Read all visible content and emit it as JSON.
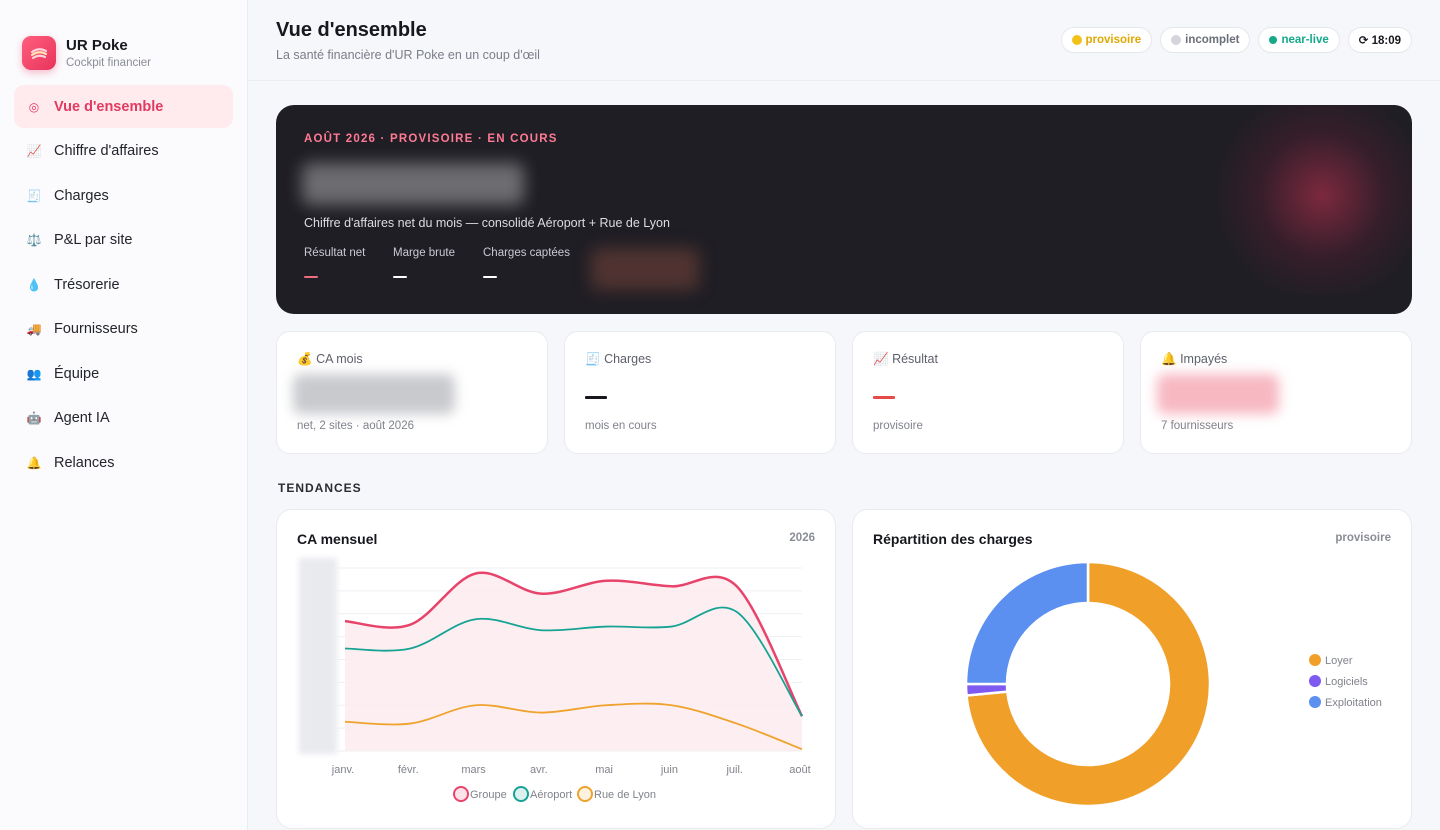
{
  "brand": {
    "name": "UR Poke",
    "subtitle": "Cockpit financier"
  },
  "nav": [
    {
      "icon": "◎",
      "label": "Vue d'ensemble",
      "active": true
    },
    {
      "icon": "📈",
      "label": "Chiffre d'affaires"
    },
    {
      "icon": "🧾",
      "label": "Charges"
    },
    {
      "icon": "⚖️",
      "label": "P&L par site"
    },
    {
      "icon": "💧",
      "label": "Trésorerie"
    },
    {
      "icon": "🚚",
      "label": "Fournisseurs"
    },
    {
      "icon": "👥",
      "label": "Équipe"
    },
    {
      "icon": "🤖",
      "label": "Agent IA"
    },
    {
      "icon": "🔔",
      "label": "Relances"
    }
  ],
  "header": {
    "title": "Vue d'ensemble",
    "subtitle": "La santé financière d'UR Poke en un coup d'œil",
    "badges": [
      {
        "label": "provisoire",
        "color": "#e0a800",
        "dot": "#f2c21b"
      },
      {
        "label": "incomplet",
        "color": "#6b6e78",
        "dot": "#d4d5da"
      },
      {
        "label": "near-live",
        "color": "#13a98a",
        "dot": "#13a98a"
      },
      {
        "label": "⟳ 18:09",
        "color": "#17181d",
        "dot": ""
      }
    ]
  },
  "hero": {
    "eyebrow": "AOÛT 2026 · PROVISOIRE · EN COURS",
    "description": "Chiffre d'affaires net du mois — consolidé Aéroport + Rue de Lyon",
    "stats": [
      {
        "label": "Résultat net",
        "dash_color": "#ef6b7e"
      },
      {
        "label": "Marge brute",
        "dash_color": "#ffffff"
      },
      {
        "label": "Charges captées",
        "dash_color": "#ffffff"
      }
    ]
  },
  "kpis": [
    {
      "icon": "💰",
      "label": "CA mois",
      "note": "net, 2 sites · août 2026",
      "value_type": "blur"
    },
    {
      "icon": "🧾",
      "label": "Charges",
      "note": "mois en cours",
      "value_type": "dash",
      "dash_color": "#17181d"
    },
    {
      "icon": "📈",
      "label": "Résultat",
      "note": "provisoire",
      "value_type": "dash",
      "dash_color": "#e84a4a"
    },
    {
      "icon": "🔔",
      "label": "Impayés",
      "note": "7 fournisseurs",
      "value_type": "blur-red"
    }
  ],
  "section": {
    "title": "TENDANCES"
  },
  "charts": {
    "line": {
      "title": "CA mensuel",
      "tag": "2026"
    },
    "donut": {
      "title": "Répartition des charges",
      "tag": "provisoire"
    }
  },
  "chart_data": [
    {
      "type": "line",
      "categories": [
        "janv.",
        "févr.",
        "mars",
        "avr.",
        "mai",
        "juin",
        "juil.",
        "août"
      ],
      "ylim": [
        0,
        100
      ],
      "series": [
        {
          "name": "Groupe",
          "color": "#e8436b",
          "values": [
            71,
            69,
            97,
            86,
            93,
            90,
            90,
            19
          ]
        },
        {
          "name": "Aéroport",
          "color": "#16a394",
          "values": [
            56,
            56,
            72,
            66,
            68,
            68,
            76,
            19
          ]
        },
        {
          "name": "Rue de Lyon",
          "color": "#efa22c",
          "values": [
            16,
            15,
            25,
            21,
            25,
            25,
            15,
            1
          ]
        }
      ]
    },
    {
      "type": "pie",
      "slices": [
        {
          "name": "Loyer",
          "value": 73.5,
          "color": "#f0a029"
        },
        {
          "name": "Logiciels",
          "value": 1.5,
          "color": "#7f5af0"
        },
        {
          "name": "Exploitation",
          "value": 25,
          "color": "#5b8ff0"
        }
      ]
    }
  ]
}
